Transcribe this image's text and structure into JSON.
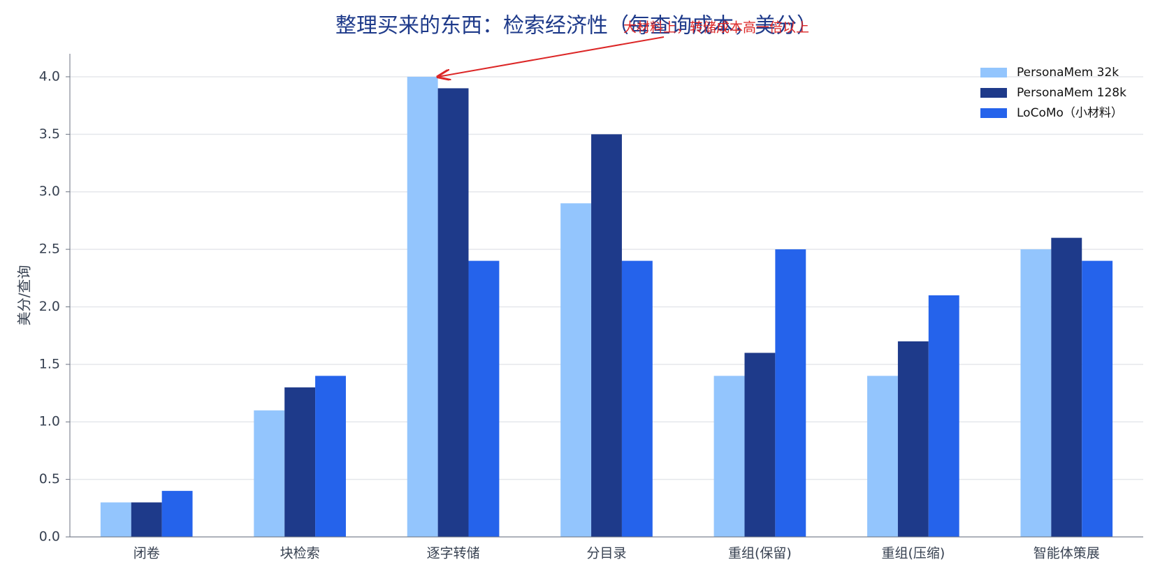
{
  "chart_data": {
    "type": "bar",
    "title": "整理买来的东西：检索经济性（每查询成本，美分）",
    "y_label": "美分/查询",
    "annotation": "大材料上，转储成本高一倍以上",
    "categories": [
      "闭卷",
      "块检索",
      "逐字转储",
      "分目录",
      "重组(保留)",
      "重组(压缩)",
      "智能体策展"
    ],
    "series": [
      {
        "name": "PersonaMem 32k",
        "color": "#93c5fd",
        "values": [
          0.3,
          1.1,
          4.0,
          2.9,
          1.4,
          1.4,
          2.5
        ]
      },
      {
        "name": "PersonaMem 128k",
        "color": "#1e3a8a",
        "values": [
          0.3,
          1.3,
          3.9,
          3.5,
          1.6,
          1.7,
          2.6
        ]
      },
      {
        "name": "LoCoMo（小材料）",
        "color": "#2563eb",
        "values": [
          0.4,
          1.4,
          2.4,
          2.4,
          2.5,
          2.1,
          2.4
        ]
      }
    ],
    "ylim": [
      0,
      4.2
    ],
    "yticks": [
      {
        "value": 0,
        "label": "0.0"
      },
      {
        "value": 0.5,
        "label": "0.5"
      },
      {
        "value": 1,
        "label": "1.0"
      },
      {
        "value": 1.5,
        "label": "1.5"
      },
      {
        "value": 2,
        "label": "2.0"
      },
      {
        "value": 2.5,
        "label": "2.5"
      },
      {
        "value": 3,
        "label": "3.0"
      },
      {
        "value": 3.5,
        "label": "3.5"
      },
      {
        "value": 4,
        "label": "4.0"
      }
    ],
    "grid": true,
    "legend": "upper right"
  }
}
